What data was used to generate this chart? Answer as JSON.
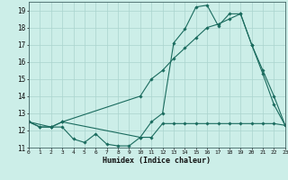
{
  "xlabel": "Humidex (Indice chaleur)",
  "background_color": "#cceee8",
  "grid_color": "#aad4ce",
  "line_color": "#1a6b5e",
  "xlim": [
    0,
    23
  ],
  "ylim": [
    11,
    19.5
  ],
  "yticks": [
    11,
    12,
    13,
    14,
    15,
    16,
    17,
    18,
    19
  ],
  "xticks": [
    0,
    1,
    2,
    3,
    4,
    5,
    6,
    7,
    8,
    9,
    10,
    11,
    12,
    13,
    14,
    15,
    16,
    17,
    18,
    19,
    20,
    21,
    22,
    23
  ],
  "line1_x": [
    0,
    1,
    2,
    3,
    4,
    5,
    6,
    7,
    8,
    9,
    10,
    11,
    12,
    13,
    14,
    15,
    16,
    17,
    18,
    19,
    20,
    21,
    22,
    23
  ],
  "line1_y": [
    12.5,
    12.2,
    12.2,
    12.2,
    11.5,
    11.3,
    11.8,
    11.2,
    11.1,
    11.1,
    11.6,
    11.6,
    12.4,
    12.4,
    12.4,
    12.4,
    12.4,
    12.4,
    12.4,
    12.4,
    12.4,
    12.4,
    12.4,
    12.3
  ],
  "line2_x": [
    0,
    1,
    2,
    3,
    10,
    11,
    12,
    13,
    14,
    15,
    16,
    17,
    18,
    19,
    20,
    21,
    22,
    23
  ],
  "line2_y": [
    12.5,
    12.2,
    12.2,
    12.5,
    14.0,
    15.0,
    15.5,
    16.2,
    16.8,
    17.4,
    18.0,
    18.2,
    18.5,
    18.8,
    17.0,
    15.5,
    14.0,
    12.3
  ],
  "line3_x": [
    0,
    2,
    3,
    10,
    11,
    12,
    13,
    14,
    15,
    16,
    17,
    18,
    19,
    20,
    21,
    22,
    23
  ],
  "line3_y": [
    12.5,
    12.2,
    12.5,
    11.6,
    12.5,
    13.0,
    17.1,
    17.9,
    19.2,
    19.3,
    18.1,
    18.8,
    18.8,
    17.0,
    15.3,
    13.5,
    12.3
  ]
}
